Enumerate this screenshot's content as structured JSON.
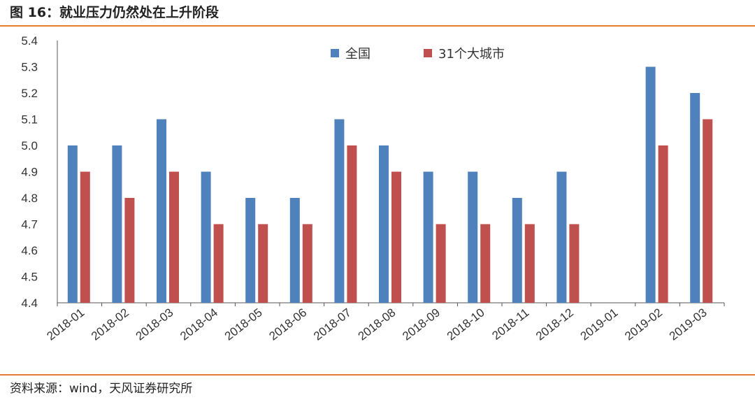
{
  "title": "图 16：就业压力仍然处在上升阶段",
  "source": "资料来源：wind，天风证券研究所",
  "chart_data": {
    "type": "bar",
    "categories": [
      "2018-01",
      "2018-02",
      "2018-03",
      "2018-04",
      "2018-05",
      "2018-06",
      "2018-07",
      "2018-08",
      "2018-09",
      "2018-10",
      "2018-11",
      "2018-12",
      "2019-01",
      "2019-02",
      "2019-03"
    ],
    "series": [
      {
        "name": "全国",
        "color": "#4f81bd",
        "values": [
          5.0,
          5.0,
          5.1,
          4.9,
          4.8,
          4.8,
          5.1,
          5.0,
          4.9,
          4.9,
          4.8,
          4.9,
          null,
          5.3,
          5.2
        ]
      },
      {
        "name": "31个大城市",
        "color": "#c0504d",
        "values": [
          4.9,
          4.8,
          4.9,
          4.7,
          4.7,
          4.7,
          5.0,
          4.9,
          4.7,
          4.7,
          4.7,
          4.7,
          null,
          5.0,
          5.1
        ]
      }
    ],
    "ylim": [
      4.4,
      5.4
    ],
    "yticks": [
      "4.4",
      "4.5",
      "4.6",
      "4.7",
      "4.8",
      "4.9",
      "5.0",
      "5.1",
      "5.2",
      "5.3",
      "5.4"
    ],
    "grid": false,
    "legend_position": "top-center"
  }
}
